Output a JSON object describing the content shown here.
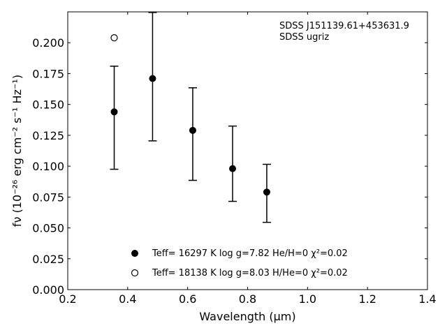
{
  "chart_data": {
    "type": "scatter",
    "xlabel": "Wavelength (μm)",
    "ylabel": "fν (10⁻²⁶ erg cm⁻² s⁻¹ Hz⁻¹)",
    "xlim": [
      0.2,
      1.4
    ],
    "ylim": [
      0.0,
      0.225
    ],
    "xticks": [
      "0.2",
      "0.4",
      "0.6",
      "0.8",
      "1.0",
      "1.2",
      "1.4"
    ],
    "yticks": [
      "0.000",
      "0.025",
      "0.050",
      "0.075",
      "0.100",
      "0.125",
      "0.150",
      "0.175",
      "0.200"
    ],
    "annotations": [
      "SDSS J151139.61+453631.9",
      "SDSS ugriz"
    ],
    "grid": false,
    "legend_position": "bottom-center",
    "observed": {
      "x": [
        0.355,
        0.483,
        0.617,
        0.75,
        0.864
      ],
      "y": [
        0.144,
        0.171,
        0.129,
        0.098,
        0.079
      ],
      "yerr_low": [
        0.0975,
        0.1205,
        0.0885,
        0.0715,
        0.0545
      ],
      "yerr_high": [
        0.181,
        0.2245,
        0.1635,
        0.1325,
        0.1015
      ],
      "color": "#000000"
    },
    "series": [
      {
        "name": "Teff= 16297 K  log g=7.82  He/H=0  χ²=0.02",
        "marker": "filled-circle",
        "x": [],
        "y": []
      },
      {
        "name": "Teff= 18138 K  log g=8.03  H/He=0  χ²=0.02",
        "marker": "open-circle",
        "x": [
          0.355
        ],
        "y": [
          0.204
        ]
      }
    ]
  }
}
